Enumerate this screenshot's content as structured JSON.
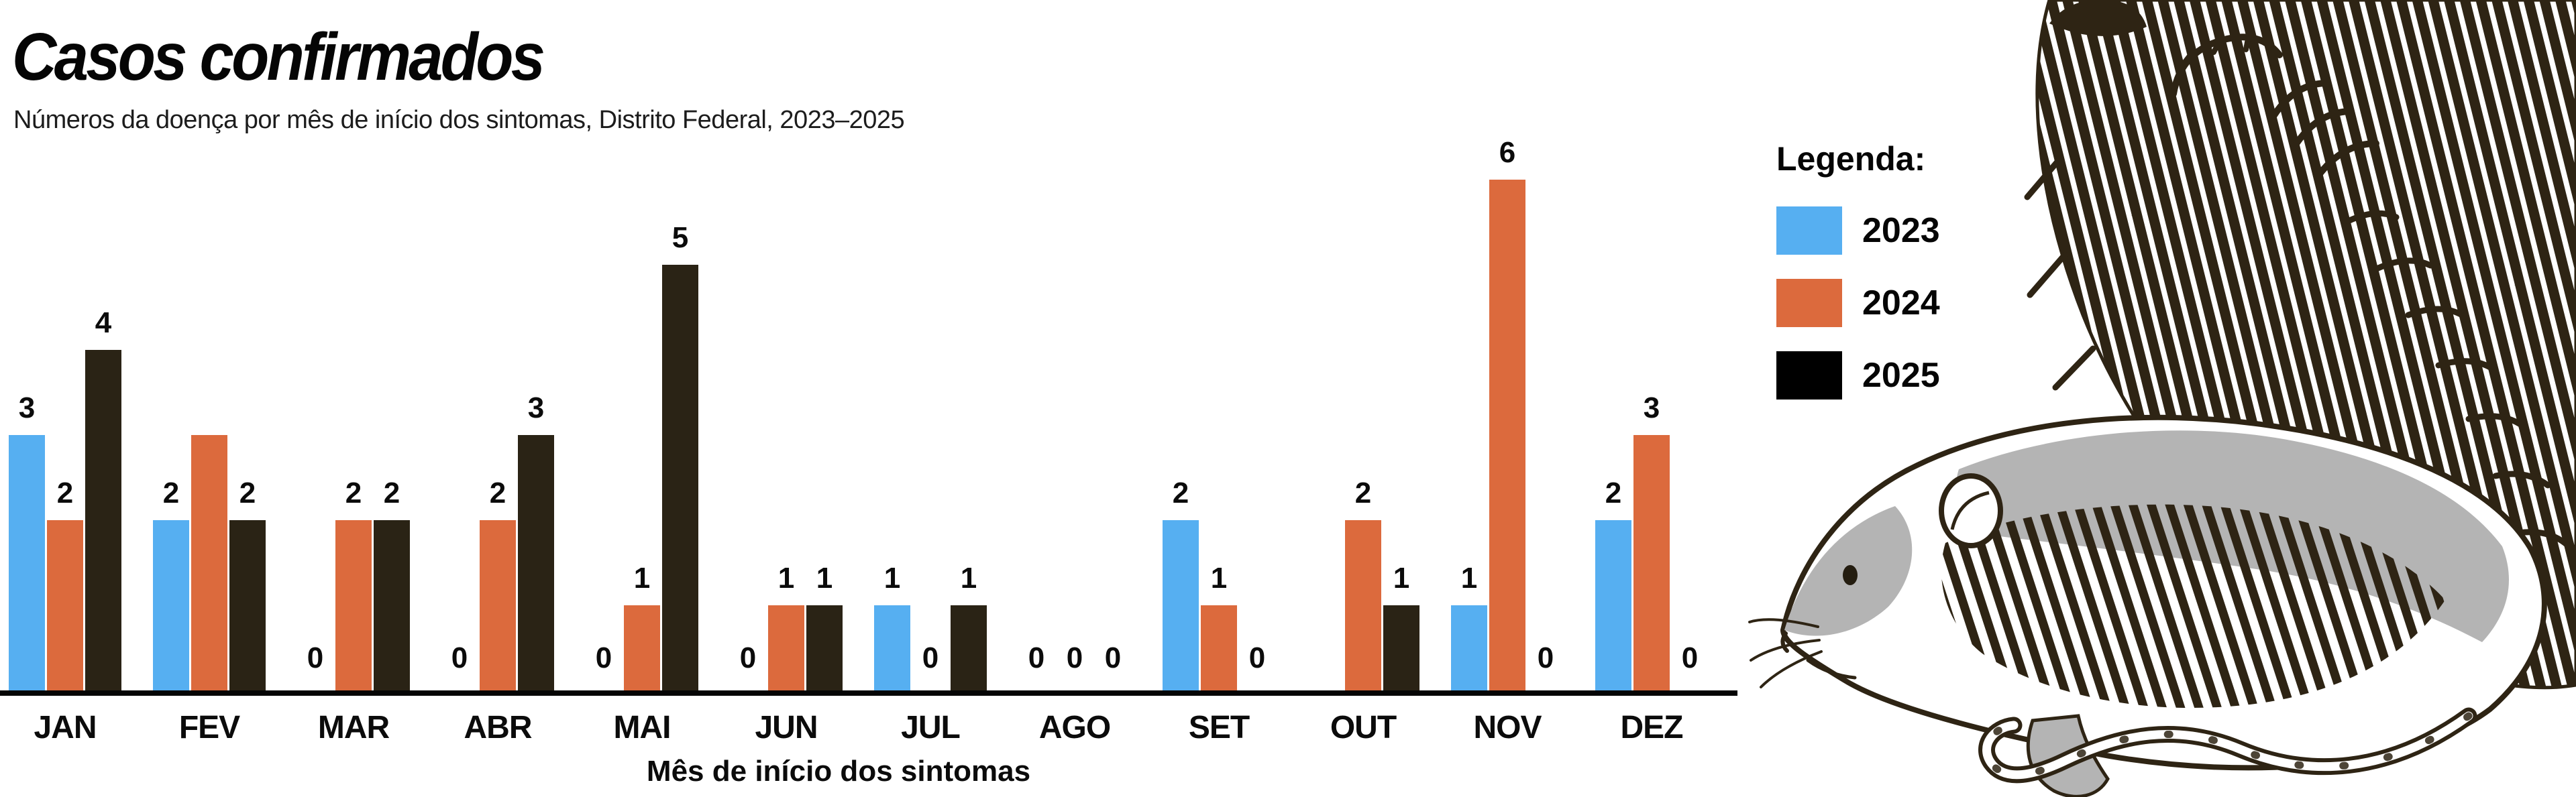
{
  "header": {
    "title": "Casos confirmados",
    "subtitle": "Números da doença por mês de início dos sintomas, Distrito Federal, 2023–2025"
  },
  "legend": {
    "title": "Legenda:"
  },
  "chart_data": {
    "type": "bar",
    "title": "Casos confirmados",
    "subtitle": "Números da doença por mês de início dos sintomas, Distrito Federal, 2023–2025",
    "xlabel": "Mês de início dos sintomas",
    "ylabel": "",
    "ylim": [
      0,
      6
    ],
    "grid": false,
    "legend_position": "right-top",
    "categories": [
      "JAN",
      "FEV",
      "MAR",
      "ABR",
      "MAI",
      "JUN",
      "JUL",
      "AGO",
      "SET",
      "OUT",
      "NOV",
      "DEZ"
    ],
    "series": [
      {
        "name": "2023",
        "color": "#56aff1",
        "legend_color": "#56aff1",
        "values": [
          3,
          2,
          0,
          0,
          0,
          0,
          1,
          0,
          2,
          0,
          1,
          2
        ]
      },
      {
        "name": "2024",
        "color": "#dc6a3d",
        "legend_color": "#dc6a3d",
        "values": [
          2,
          3,
          2,
          2,
          1,
          1,
          0,
          0,
          1,
          2,
          6,
          3
        ]
      },
      {
        "name": "2025",
        "color": "#2a2315",
        "legend_color": "#000000",
        "values": [
          4,
          2,
          2,
          3,
          5,
          1,
          1,
          0,
          0,
          1,
          0,
          0
        ]
      }
    ],
    "value_labels_shown": true,
    "hidden_value_labels": [
      {
        "category": "FEV",
        "series": "2024"
      },
      {
        "category": "OUT",
        "series": "2023"
      }
    ],
    "axis_color": "#050505"
  },
  "illustration": {
    "name": "two-rats-sketch",
    "description": "hand-drawn ink sketch of a dark furry rat seen from behind and a white rat with gray shading lying in front, long tail curling below",
    "stroke_color": "#2e2414",
    "shade_color": "#b4b4b4"
  }
}
